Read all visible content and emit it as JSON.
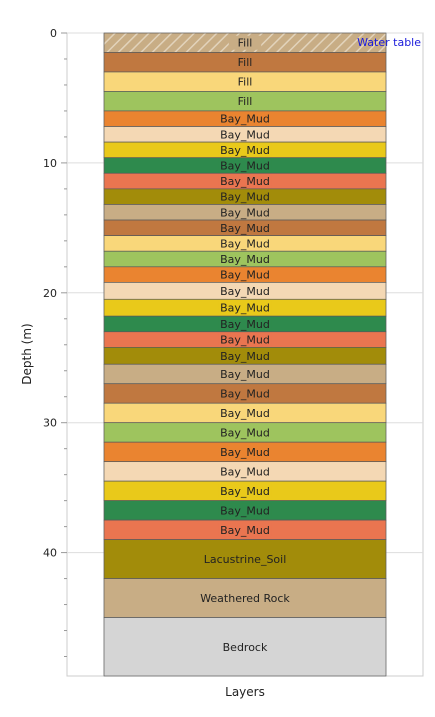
{
  "chart_data": {
    "type": "bar",
    "xlabel": "Layers",
    "ylabel": "Depth (m)",
    "ylim": [
      0,
      49.5
    ],
    "y_inverted": true,
    "yticks": [
      0,
      10,
      20,
      30,
      40
    ],
    "grid": true,
    "water_table_label": "Water table",
    "water_table_depth": 0,
    "layers": [
      {
        "name": "Fill",
        "top": 0.0,
        "bottom": 1.5,
        "color": "#c8ad85",
        "pattern": "hatch"
      },
      {
        "name": "Fill",
        "top": 1.5,
        "bottom": 3.0,
        "color": "#c07840"
      },
      {
        "name": "Fill",
        "top": 3.0,
        "bottom": 4.5,
        "color": "#f9d77a"
      },
      {
        "name": "Fill",
        "top": 4.5,
        "bottom": 6.0,
        "color": "#9ec45e"
      },
      {
        "name": "Bay_Mud",
        "top": 6.0,
        "bottom": 7.2,
        "color": "#ea8430"
      },
      {
        "name": "Bay_Mud",
        "top": 7.2,
        "bottom": 8.4,
        "color": "#f4d8b4"
      },
      {
        "name": "Bay_Mud",
        "top": 8.4,
        "bottom": 9.6,
        "color": "#e9c91a"
      },
      {
        "name": "Bay_Mud",
        "top": 9.6,
        "bottom": 10.8,
        "color": "#2e8a4d"
      },
      {
        "name": "Bay_Mud",
        "top": 10.8,
        "bottom": 12.0,
        "color": "#ea7550"
      },
      {
        "name": "Bay_Mud",
        "top": 12.0,
        "bottom": 13.2,
        "color": "#a28c0a"
      },
      {
        "name": "Bay_Mud",
        "top": 13.2,
        "bottom": 14.4,
        "color": "#c8ad85"
      },
      {
        "name": "Bay_Mud",
        "top": 14.4,
        "bottom": 15.6,
        "color": "#c07840"
      },
      {
        "name": "Bay_Mud",
        "top": 15.6,
        "bottom": 16.8,
        "color": "#f9d77a"
      },
      {
        "name": "Bay_Mud",
        "top": 16.8,
        "bottom": 18.0,
        "color": "#9ec45e"
      },
      {
        "name": "Bay_Mud",
        "top": 18.0,
        "bottom": 19.2,
        "color": "#ea8430"
      },
      {
        "name": "Bay_Mud",
        "top": 19.2,
        "bottom": 20.5,
        "color": "#f4d8b4"
      },
      {
        "name": "Bay_Mud",
        "top": 20.5,
        "bottom": 21.8,
        "color": "#e9c91a"
      },
      {
        "name": "Bay_Mud",
        "top": 21.8,
        "bottom": 23.0,
        "color": "#2e8a4d"
      },
      {
        "name": "Bay_Mud",
        "top": 23.0,
        "bottom": 24.2,
        "color": "#ea7550"
      },
      {
        "name": "Bay_Mud",
        "top": 24.2,
        "bottom": 25.5,
        "color": "#a28c0a"
      },
      {
        "name": "Bay_Mud",
        "top": 25.5,
        "bottom": 27.0,
        "color": "#c8ad85"
      },
      {
        "name": "Bay_Mud",
        "top": 27.0,
        "bottom": 28.5,
        "color": "#c07840"
      },
      {
        "name": "Bay_Mud",
        "top": 28.5,
        "bottom": 30.0,
        "color": "#f9d77a"
      },
      {
        "name": "Bay_Mud",
        "top": 30.0,
        "bottom": 31.5,
        "color": "#9ec45e"
      },
      {
        "name": "Bay_Mud",
        "top": 31.5,
        "bottom": 33.0,
        "color": "#ea8430"
      },
      {
        "name": "Bay_Mud",
        "top": 33.0,
        "bottom": 34.5,
        "color": "#f4d8b4"
      },
      {
        "name": "Bay_Mud",
        "top": 34.5,
        "bottom": 36.0,
        "color": "#e9c91a"
      },
      {
        "name": "Bay_Mud",
        "top": 36.0,
        "bottom": 37.5,
        "color": "#2e8a4d"
      },
      {
        "name": "Bay_Mud",
        "top": 37.5,
        "bottom": 39.0,
        "color": "#ea7550"
      },
      {
        "name": "Lacustrine_Soil",
        "top": 39.0,
        "bottom": 42.0,
        "color": "#a28c0a"
      },
      {
        "name": "Weathered Rock",
        "top": 42.0,
        "bottom": 45.0,
        "color": "#c8ad85"
      },
      {
        "name": "Bedrock",
        "top": 45.0,
        "bottom": 49.5,
        "color": "#d5d5d5"
      }
    ]
  }
}
